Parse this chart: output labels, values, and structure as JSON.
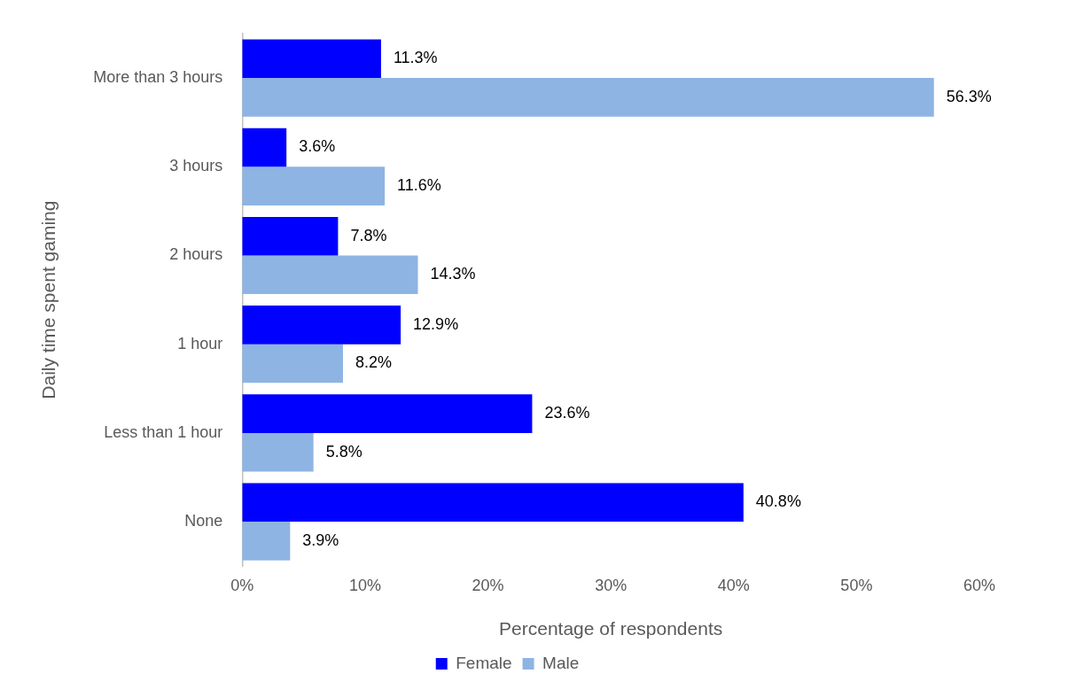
{
  "chart_data": {
    "type": "bar",
    "orientation": "horizontal",
    "ylabel": "Daily time spent gaming",
    "xlabel": "Percentage of respondents",
    "categories": [
      "More than 3 hours",
      "3 hours",
      "2 hours",
      "1 hour",
      "Less than 1 hour",
      "None"
    ],
    "series": [
      {
        "name": "Female",
        "color": "#0000ff",
        "values": [
          11.3,
          3.6,
          7.8,
          12.9,
          23.6,
          40.8
        ],
        "value_labels": [
          "11.3%",
          "3.6%",
          "7.8%",
          "12.9%",
          "23.6%",
          "40.8%"
        ]
      },
      {
        "name": "Male",
        "color": "#8eb4e3",
        "values": [
          56.3,
          11.6,
          14.3,
          8.2,
          5.8,
          3.9
        ],
        "value_labels": [
          "56.3%",
          "11.6%",
          "14.3%",
          "8.2%",
          "5.8%",
          "3.9%"
        ]
      }
    ],
    "xlim": [
      0,
      60
    ],
    "xticks": [
      {
        "value": 0,
        "label": "0%"
      },
      {
        "value": 10,
        "label": "10%"
      },
      {
        "value": 20,
        "label": "20%"
      },
      {
        "value": 30,
        "label": "30%"
      },
      {
        "value": 40,
        "label": "40%"
      },
      {
        "value": 50,
        "label": "50%"
      },
      {
        "value": 60,
        "label": "60%"
      }
    ],
    "grid": false,
    "legend": "bottom"
  }
}
